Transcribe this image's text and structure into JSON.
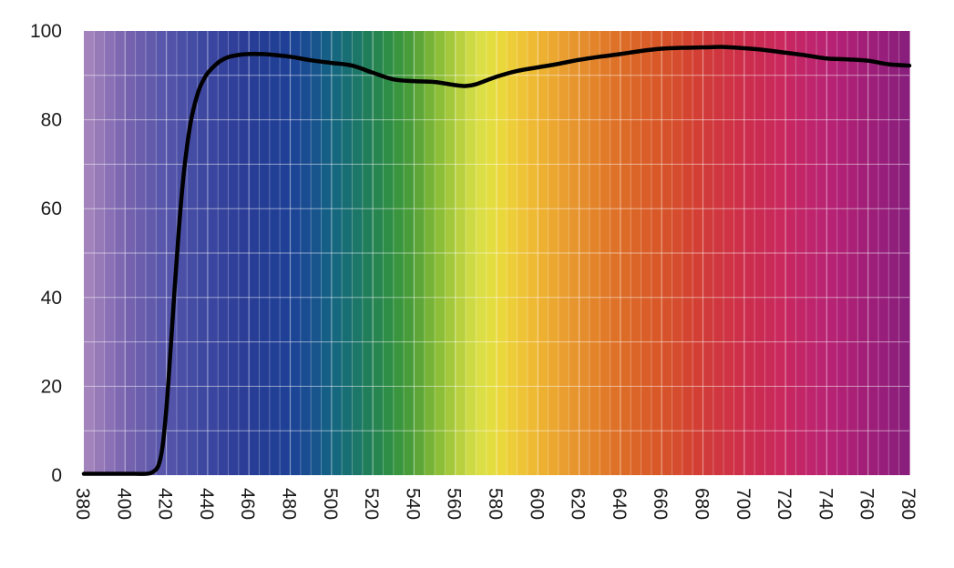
{
  "chart_data": {
    "type": "line",
    "title": "",
    "xlabel": "",
    "ylabel": "",
    "xlim": [
      380,
      780
    ],
    "ylim": [
      0,
      100
    ],
    "x_ticks": [
      "380",
      "400",
      "420",
      "440",
      "460",
      "480",
      "500",
      "520",
      "540",
      "560",
      "580",
      "600",
      "620",
      "640",
      "660",
      "680",
      "700",
      "720",
      "740",
      "760",
      "780"
    ],
    "y_ticks": [
      "0",
      "20",
      "40",
      "60",
      "80",
      "100"
    ],
    "x_tick_label_rotation": "vertical",
    "grid": true,
    "background": "visible-spectrum color bands",
    "line_color": "#000000",
    "series": [
      {
        "x": [
          380,
          390,
          400,
          405,
          410,
          413,
          416,
          418,
          420,
          422,
          424,
          426,
          428,
          430,
          432,
          434,
          436,
          438,
          440,
          443,
          446,
          450,
          455,
          460,
          465,
          470,
          480,
          490,
          500,
          510,
          520,
          530,
          540,
          550,
          560,
          565,
          570,
          580,
          590,
          600,
          610,
          620,
          630,
          640,
          650,
          660,
          670,
          680,
          690,
          700,
          710,
          720,
          730,
          740,
          750,
          760,
          770,
          780
        ],
        "y": [
          0.3,
          0.3,
          0.3,
          0.3,
          0.3,
          0.6,
          2,
          6,
          15,
          28,
          42,
          55,
          66,
          74,
          80,
          84,
          87,
          89,
          90.5,
          92,
          93.2,
          94.1,
          94.6,
          94.8,
          94.8,
          94.7,
          94.2,
          93.4,
          92.8,
          92.2,
          90.6,
          89.1,
          88.7,
          88.5,
          87.8,
          87.6,
          88.0,
          89.7,
          91.0,
          91.8,
          92.6,
          93.5,
          94.2,
          94.8,
          95.5,
          96.0,
          96.2,
          96.3,
          96.4,
          96.1,
          95.7,
          95.1,
          94.5,
          93.8,
          93.6,
          93.3,
          92.5,
          92.2
        ]
      }
    ]
  }
}
